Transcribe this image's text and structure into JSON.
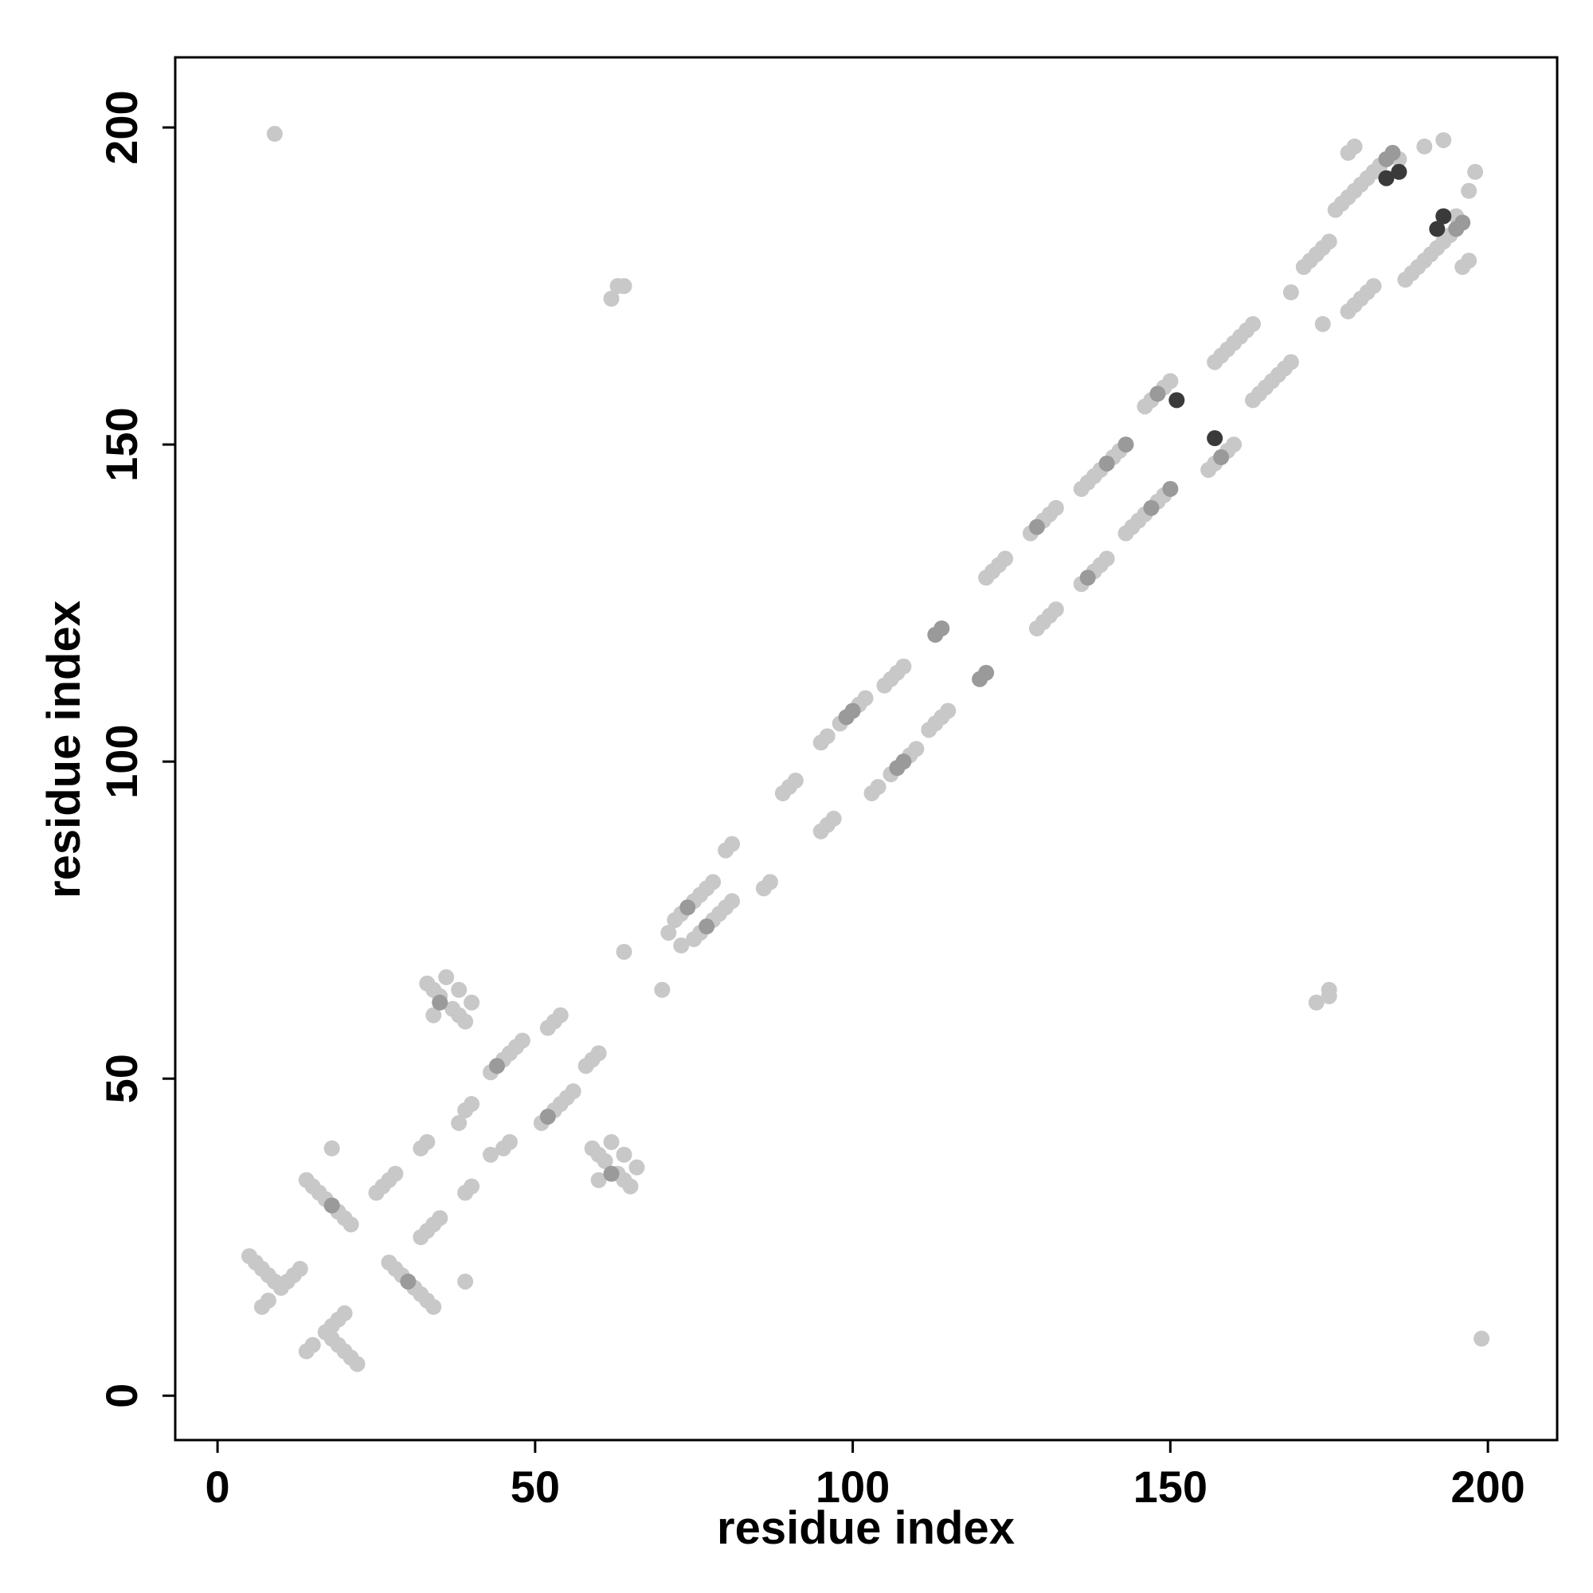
{
  "chart_data": {
    "type": "scatter",
    "xlabel": "residue index",
    "ylabel": "residue index",
    "xlim": [
      -6.66,
      210.9
    ],
    "ylim": [
      -7,
      211.06
    ],
    "xticks": [
      0,
      50,
      100,
      150,
      200
    ],
    "yticks": [
      0,
      50,
      100,
      150,
      200
    ],
    "series": [
      {
        "color": "#c8c8c8",
        "x": [
          22,
          21,
          20,
          19,
          18,
          17,
          18,
          19,
          20,
          14,
          15,
          34,
          33,
          32,
          31,
          29,
          28,
          27,
          39,
          32,
          33,
          34,
          35,
          39,
          40,
          65,
          64,
          63,
          61,
          60,
          59,
          60,
          66,
          64,
          62,
          43,
          45,
          46,
          51,
          53,
          54,
          55,
          56,
          58,
          59,
          60,
          70,
          73,
          75,
          76,
          78,
          79,
          80,
          81,
          86,
          87,
          173,
          175,
          175,
          95,
          96,
          97,
          103,
          104,
          106,
          109,
          110,
          112,
          113,
          114,
          115,
          129,
          130,
          131,
          132,
          136,
          138,
          139,
          140,
          143,
          144,
          145,
          146,
          148,
          149,
          156,
          157,
          159,
          160,
          163,
          164,
          165,
          166,
          167,
          168,
          169,
          174,
          178,
          179,
          180,
          181,
          182,
          187,
          188,
          189,
          190,
          191,
          192,
          193,
          194,
          196,
          197,
          195,
          197,
          198,
          199,
          5,
          6,
          7,
          8,
          9,
          10,
          11,
          12,
          13,
          7,
          8,
          14,
          15,
          16,
          17,
          19,
          20,
          21,
          18,
          25,
          26,
          27,
          28,
          32,
          33,
          33,
          34,
          35,
          37,
          38,
          39,
          34,
          36,
          38,
          40,
          38,
          39,
          40,
          43,
          45,
          46,
          47,
          48,
          52,
          53,
          54,
          64,
          71,
          72,
          73,
          75,
          76,
          77,
          78,
          80,
          81,
          62,
          63,
          64,
          89,
          90,
          91,
          95,
          96,
          98,
          101,
          102,
          105,
          106,
          107,
          108,
          121,
          122,
          123,
          124,
          128,
          130,
          131,
          132,
          136,
          137,
          138,
          139,
          141,
          142,
          146,
          147,
          149,
          150,
          157,
          158,
          159,
          160,
          161,
          162,
          163,
          169,
          171,
          172,
          173,
          174,
          175,
          176,
          177,
          178,
          179,
          180,
          181,
          182,
          183,
          178,
          179,
          186,
          190,
          193,
          9
        ],
        "y": [
          5,
          6,
          7,
          8,
          9,
          10,
          11,
          12,
          13,
          7,
          8,
          14,
          15,
          16,
          17,
          19,
          20,
          21,
          18,
          25,
          26,
          27,
          28,
          32,
          33,
          33,
          34,
          35,
          37,
          38,
          39,
          34,
          36,
          38,
          40,
          38,
          39,
          40,
          43,
          45,
          46,
          47,
          48,
          52,
          53,
          54,
          64,
          71,
          72,
          73,
          75,
          76,
          77,
          78,
          80,
          81,
          62,
          63,
          64,
          89,
          90,
          91,
          95,
          96,
          98,
          101,
          102,
          105,
          106,
          107,
          108,
          121,
          122,
          123,
          124,
          128,
          130,
          131,
          132,
          136,
          137,
          138,
          139,
          141,
          142,
          146,
          147,
          149,
          150,
          157,
          158,
          159,
          160,
          161,
          162,
          163,
          169,
          171,
          172,
          173,
          174,
          175,
          176,
          177,
          178,
          179,
          180,
          181,
          182,
          183,
          178,
          179,
          186,
          190,
          193,
          9,
          22,
          21,
          20,
          19,
          18,
          17,
          18,
          19,
          20,
          14,
          15,
          34,
          33,
          32,
          31,
          29,
          28,
          27,
          39,
          32,
          33,
          34,
          35,
          39,
          40,
          65,
          64,
          63,
          61,
          60,
          59,
          60,
          66,
          64,
          62,
          43,
          45,
          46,
          51,
          53,
          54,
          55,
          56,
          58,
          59,
          60,
          70,
          73,
          75,
          76,
          78,
          79,
          80,
          81,
          86,
          87,
          173,
          175,
          175,
          95,
          96,
          97,
          103,
          104,
          106,
          109,
          110,
          112,
          113,
          114,
          115,
          129,
          130,
          131,
          132,
          136,
          138,
          139,
          140,
          143,
          144,
          145,
          146,
          148,
          149,
          156,
          157,
          159,
          160,
          163,
          164,
          165,
          166,
          167,
          168,
          169,
          174,
          178,
          179,
          180,
          181,
          182,
          187,
          188,
          189,
          190,
          191,
          192,
          193,
          194,
          196,
          197,
          195,
          197,
          198,
          199
        ]
      },
      {
        "color": "#9a9a9a",
        "x": [
          30,
          62,
          52,
          77,
          107,
          108,
          120,
          121,
          137,
          147,
          150,
          158,
          196,
          195,
          18,
          35,
          44,
          74,
          99,
          100,
          113,
          114,
          129,
          140,
          143,
          148,
          185,
          184
        ],
        "y": [
          18,
          35,
          44,
          74,
          99,
          100,
          113,
          114,
          129,
          140,
          143,
          148,
          185,
          184,
          30,
          62,
          52,
          77,
          107,
          108,
          120,
          121,
          137,
          147,
          150,
          158,
          196,
          195
        ]
      },
      {
        "color": "#3a3a3a",
        "x": [
          157,
          192,
          193,
          151,
          184,
          186
        ],
        "y": [
          151,
          184,
          186,
          157,
          192,
          193
        ]
      }
    ]
  }
}
